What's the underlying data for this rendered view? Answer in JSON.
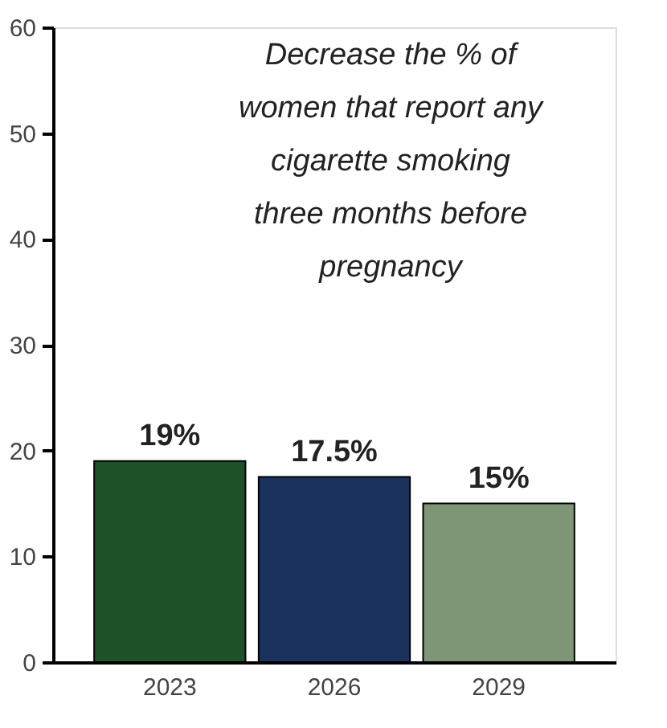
{
  "chart_data": {
    "type": "bar",
    "title": "Decrease the % of women that report any cigarette smoking three months before pregnancy",
    "categories": [
      "2023",
      "2026",
      "2029"
    ],
    "values": [
      19,
      17.5,
      15
    ],
    "colors": [
      "#1d5229",
      "#1a325c",
      "#7f9676"
    ],
    "value_labels": [
      "19%",
      "17.5%",
      "15%"
    ],
    "ylim": [
      0,
      60
    ],
    "yticks": [
      0,
      10,
      20,
      30,
      40,
      50,
      60
    ],
    "grid": false
  }
}
